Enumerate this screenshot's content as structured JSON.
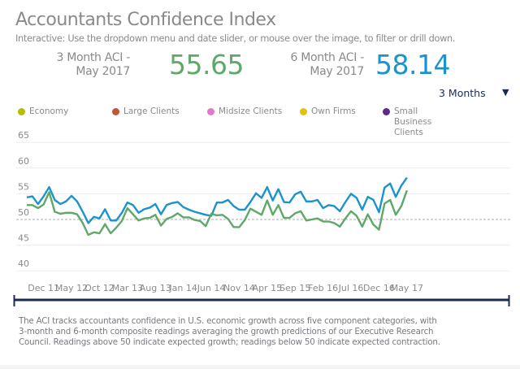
{
  "header": {
    "title": "Accountants Confidence Index",
    "subtitle": "Interactive: Use the dropdown menu and date slider, or mouse over the image, to filter or drill down."
  },
  "kpis": [
    {
      "label_line1": "3 Month ACI -",
      "label_line2": "May 2017",
      "value": "55.65",
      "color": "#5ea86a"
    },
    {
      "label_line1": "6 Month ACI -",
      "label_line2": "May 2017",
      "value": "58.14",
      "color": "#1b93cc"
    }
  ],
  "dropdown": {
    "selected": "3 Months",
    "icon": "triangle-down-icon"
  },
  "legend": [
    {
      "label": "Economy",
      "color": "#b5bd00"
    },
    {
      "label": "Large Clients",
      "color": "#c0553a"
    },
    {
      "label": "Midsize Clients",
      "color": "#e27ac8"
    },
    {
      "label": "Own Firms",
      "color": "#e3c00a"
    },
    {
      "label": "Small Business Clients",
      "color": "#5b2a8a"
    }
  ],
  "footer": "The ACI tracks accountants confidence in U.S. economic growth across five component categories, with 3-month and 6-month composite readings averaging the growth predictions of our Executive Research Council. Readings above 50 indicate expected growth; readings below 50 indicate expected contraction.",
  "chart_data": {
    "type": "line",
    "x_start": "Sep 11",
    "x_end": "May 17",
    "interval": "monthly",
    "xticks": [
      "Dec 11",
      "May 12",
      "Oct 12",
      "Mar 13",
      "Aug 13",
      "Jan 14",
      "Jun 14",
      "Nov 14",
      "Apr 15",
      "Sep 15",
      "Feb 16",
      "Jul 16",
      "Dec 16",
      "May 17"
    ],
    "yticks": [
      40,
      45,
      50,
      55,
      60,
      65
    ],
    "ylim": [
      40,
      65
    ],
    "reference_line": 50,
    "grid": true,
    "series": [
      {
        "name": "6 Month ACI",
        "color": "#1b93cc",
        "values": [
          54.3,
          54.5,
          53.0,
          54.5,
          56.3,
          53.8,
          53.0,
          53.5,
          54.6,
          53.5,
          51.5,
          49.3,
          50.5,
          50.2,
          52.0,
          49.8,
          49.8,
          51.3,
          53.3,
          52.8,
          51.3,
          52.0,
          52.3,
          53.0,
          51.0,
          52.8,
          53.2,
          53.4,
          52.4,
          51.9,
          51.5,
          51.2,
          50.9,
          50.7,
          53.3,
          53.3,
          53.8,
          52.6,
          51.9,
          51.9,
          53.4,
          55.1,
          54.2,
          56.3,
          53.7,
          55.9,
          53.4,
          53.3,
          54.9,
          55.4,
          53.5,
          53.5,
          53.8,
          52.2,
          52.8,
          52.6,
          51.6,
          53.4,
          55.0,
          54.2,
          51.9,
          54.4,
          53.8,
          51.4,
          56.2,
          57.0,
          54.4,
          56.6,
          58.14
        ]
      },
      {
        "name": "3 Month ACI",
        "color": "#5ea86a",
        "values": [
          52.8,
          52.8,
          52.2,
          52.9,
          55.3,
          51.5,
          51.1,
          51.3,
          51.3,
          51.0,
          49.3,
          47.0,
          47.5,
          47.3,
          49.1,
          47.3,
          48.4,
          49.7,
          52.2,
          51.0,
          49.8,
          50.2,
          50.3,
          50.9,
          48.8,
          50.1,
          50.5,
          51.2,
          50.4,
          50.4,
          49.9,
          49.7,
          48.7,
          51.1,
          50.8,
          50.9,
          50.1,
          48.5,
          48.5,
          49.9,
          52.1,
          51.5,
          50.9,
          53.7,
          50.9,
          52.8,
          50.3,
          50.3,
          51.2,
          51.6,
          49.8,
          50.0,
          50.2,
          49.6,
          49.6,
          49.3,
          48.6,
          50.2,
          51.6,
          50.7,
          48.6,
          51.0,
          49.0,
          48.0,
          53.1,
          53.8,
          50.9,
          52.6,
          55.65
        ]
      }
    ]
  }
}
